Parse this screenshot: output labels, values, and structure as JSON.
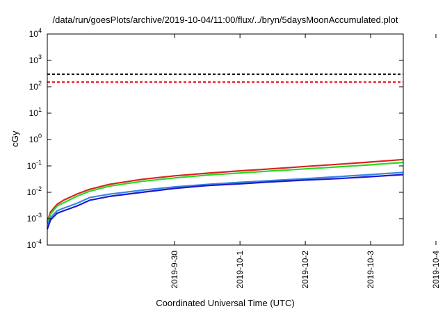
{
  "chart_data": {
    "type": "line",
    "title": "/data/run/goesPlots/archive/2019-10-04/11:00/flux/../bryn/5daysMoonAccumulated.plot",
    "xlabel": "Coordinated Universal Time (UTC)",
    "ylabel": "cGy",
    "y_scale": "log",
    "ylim": [
      0.0001,
      10000
    ],
    "xlim": [
      -1.95,
      3.5
    ],
    "x_reference": "2019-09-30",
    "x_ticks": [
      {
        "offset_days": 0,
        "label": "2019-9-30"
      },
      {
        "offset_days": 1,
        "label": "2019-10-1"
      },
      {
        "offset_days": 2,
        "label": "2019-10-2"
      },
      {
        "offset_days": 3,
        "label": "2019-10-3"
      },
      {
        "offset_days": 4,
        "label": "2019-10-4"
      }
    ],
    "y_ticks": [
      {
        "value": 0.0001,
        "base": "10",
        "exp": "-4"
      },
      {
        "value": 0.001,
        "base": "10",
        "exp": "-3"
      },
      {
        "value": 0.01,
        "base": "10",
        "exp": "-2"
      },
      {
        "value": 0.1,
        "base": "10",
        "exp": "-1"
      },
      {
        "value": 1,
        "base": "10",
        "exp": "0"
      },
      {
        "value": 10,
        "base": "10",
        "exp": "1"
      },
      {
        "value": 100,
        "base": "10",
        "exp": "2"
      },
      {
        "value": 1000,
        "base": "10",
        "exp": "3"
      },
      {
        "value": 10000,
        "base": "10",
        "exp": "4"
      }
    ],
    "grid": false,
    "legend": "none",
    "thresholds": [
      {
        "value": 300,
        "color": "#000000",
        "style": "dashed"
      },
      {
        "value": 150,
        "color": "#e8000b",
        "style": "dashed"
      }
    ],
    "series": [
      {
        "color": "#e02020",
        "x": [
          -1.95,
          -1.9,
          -1.8,
          -1.7,
          -1.5,
          -1.3,
          -1.0,
          -0.5,
          0.0,
          0.5,
          1.0,
          1.5,
          2.0,
          2.5,
          3.0,
          3.5
        ],
        "y": [
          0.0008,
          0.0018,
          0.0035,
          0.005,
          0.0085,
          0.013,
          0.02,
          0.031,
          0.042,
          0.053,
          0.065,
          0.078,
          0.095,
          0.115,
          0.14,
          0.175
        ]
      },
      {
        "color": "#22dd22",
        "x": [
          -1.95,
          -1.9,
          -1.8,
          -1.7,
          -1.5,
          -1.3,
          -1.0,
          -0.5,
          0.0,
          0.5,
          1.0,
          1.5,
          2.0,
          2.5,
          3.0,
          3.5
        ],
        "y": [
          0.0007,
          0.0015,
          0.003,
          0.004,
          0.007,
          0.011,
          0.017,
          0.026,
          0.035,
          0.045,
          0.054,
          0.065,
          0.077,
          0.092,
          0.11,
          0.135
        ]
      },
      {
        "color": "#3a86e0",
        "x": [
          -1.95,
          -1.9,
          -1.8,
          -1.7,
          -1.5,
          -1.3,
          -1.0,
          -0.5,
          0.0,
          0.5,
          1.0,
          1.5,
          2.0,
          2.5,
          3.0,
          3.5
        ],
        "y": [
          0.0006,
          0.0011,
          0.002,
          0.0025,
          0.0038,
          0.0063,
          0.0085,
          0.012,
          0.016,
          0.02,
          0.024,
          0.028,
          0.033,
          0.039,
          0.047,
          0.057
        ]
      },
      {
        "color": "#1a1ad0",
        "x": [
          -1.95,
          -1.9,
          -1.8,
          -1.7,
          -1.5,
          -1.3,
          -1.0,
          -0.5,
          0.0,
          0.5,
          1.0,
          1.5,
          2.0,
          2.5,
          3.0,
          3.5
        ],
        "y": [
          0.0004,
          0.0009,
          0.0016,
          0.002,
          0.003,
          0.005,
          0.007,
          0.01,
          0.014,
          0.018,
          0.021,
          0.025,
          0.029,
          0.033,
          0.039,
          0.047
        ]
      }
    ]
  }
}
